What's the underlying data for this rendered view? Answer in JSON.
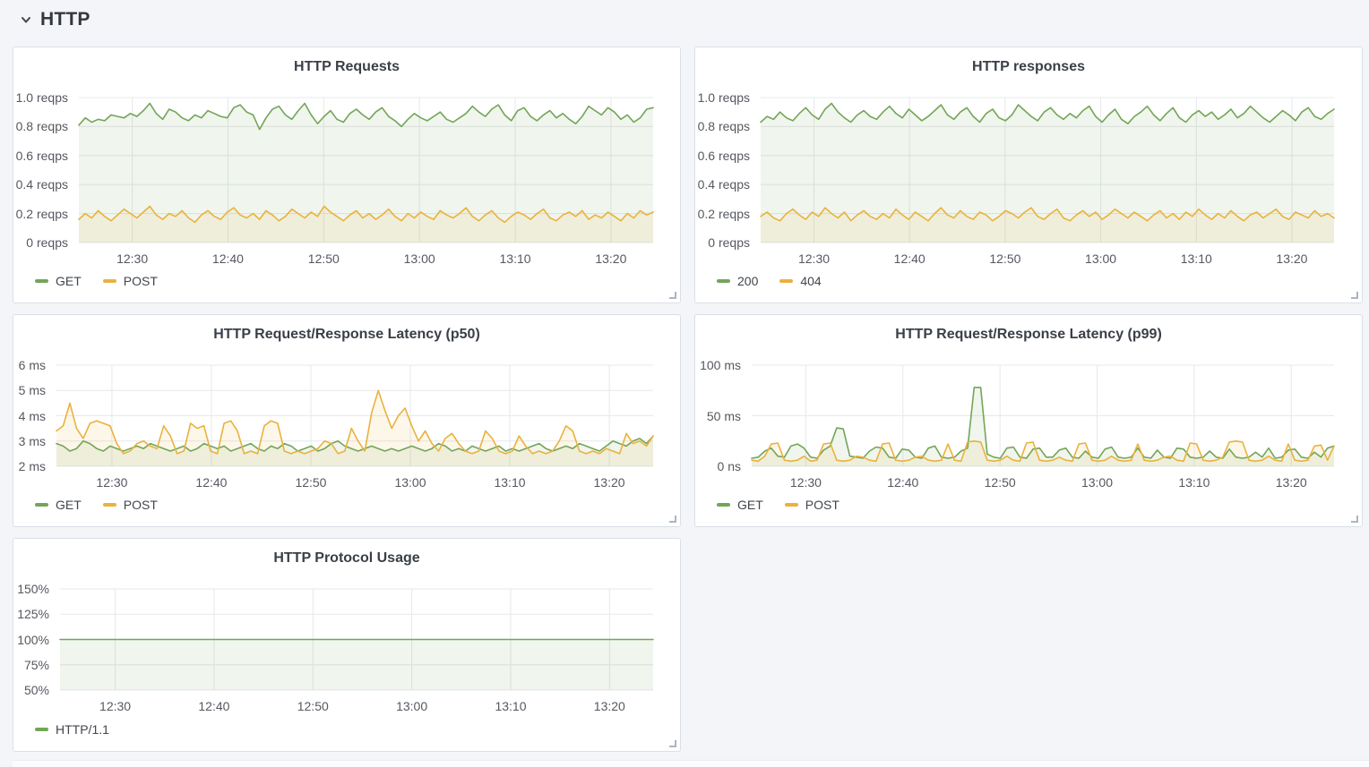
{
  "section": {
    "title": "HTTP"
  },
  "colors": {
    "series_green": "#73a557",
    "series_yellow": "#e9b23d",
    "grid": "#e7e8eb",
    "panel_border": "#dadfe8",
    "page_background": "#f4f5f9",
    "panel_background": "#ffffff",
    "tick_text": "#55585f",
    "title_text": "#3a3f47"
  },
  "chart_data": [
    {
      "type": "line",
      "title": "HTTP Requests",
      "y_unit": "reqps",
      "ylim": [
        0,
        1.0
      ],
      "yticks": {
        "labels": [
          "1.0 reqps",
          "0.8 reqps",
          "0.6 reqps",
          "0.4 reqps",
          "0.2 reqps",
          "0 reqps"
        ],
        "values": [
          1.0,
          0.8,
          0.6,
          0.4,
          0.2,
          0
        ]
      },
      "xticks": [
        "12:30",
        "12:40",
        "12:50",
        "13:00",
        "13:10",
        "13:20"
      ],
      "x_range": [
        "12:24",
        "13:24"
      ],
      "grid": true,
      "legend_position": "bottom-left",
      "series": [
        {
          "name": "GET",
          "color": "#73a557",
          "values": [
            0.81,
            0.86,
            0.83,
            0.85,
            0.84,
            0.88,
            0.87,
            0.86,
            0.89,
            0.87,
            0.91,
            0.96,
            0.89,
            0.85,
            0.92,
            0.9,
            0.86,
            0.84,
            0.88,
            0.86,
            0.91,
            0.89,
            0.87,
            0.86,
            0.93,
            0.95,
            0.9,
            0.88,
            0.78,
            0.86,
            0.92,
            0.94,
            0.88,
            0.85,
            0.91,
            0.96,
            0.88,
            0.82,
            0.87,
            0.91,
            0.85,
            0.83,
            0.89,
            0.92,
            0.88,
            0.85,
            0.9,
            0.93,
            0.87,
            0.84,
            0.8,
            0.85,
            0.89,
            0.86,
            0.84,
            0.87,
            0.9,
            0.85,
            0.83,
            0.86,
            0.89,
            0.94,
            0.9,
            0.87,
            0.92,
            0.95,
            0.88,
            0.84,
            0.91,
            0.93,
            0.87,
            0.84,
            0.88,
            0.91,
            0.86,
            0.89,
            0.85,
            0.82,
            0.87,
            0.94,
            0.91,
            0.88,
            0.93,
            0.9,
            0.85,
            0.88,
            0.83,
            0.86,
            0.92,
            0.93
          ]
        },
        {
          "name": "POST",
          "color": "#e9b23d",
          "values": [
            0.16,
            0.2,
            0.17,
            0.22,
            0.18,
            0.15,
            0.19,
            0.23,
            0.2,
            0.17,
            0.21,
            0.25,
            0.19,
            0.16,
            0.2,
            0.18,
            0.22,
            0.17,
            0.14,
            0.19,
            0.22,
            0.18,
            0.16,
            0.21,
            0.24,
            0.19,
            0.17,
            0.2,
            0.16,
            0.22,
            0.19,
            0.15,
            0.18,
            0.23,
            0.2,
            0.17,
            0.21,
            0.18,
            0.25,
            0.21,
            0.18,
            0.15,
            0.19,
            0.22,
            0.17,
            0.2,
            0.16,
            0.19,
            0.23,
            0.18,
            0.15,
            0.2,
            0.17,
            0.21,
            0.18,
            0.16,
            0.22,
            0.19,
            0.17,
            0.2,
            0.24,
            0.18,
            0.15,
            0.19,
            0.22,
            0.17,
            0.14,
            0.18,
            0.21,
            0.19,
            0.16,
            0.2,
            0.23,
            0.17,
            0.15,
            0.19,
            0.21,
            0.18,
            0.22,
            0.16,
            0.19,
            0.17,
            0.21,
            0.18,
            0.15,
            0.2,
            0.17,
            0.22,
            0.19,
            0.21
          ]
        }
      ]
    },
    {
      "type": "line",
      "title": "HTTP responses",
      "y_unit": "reqps",
      "ylim": [
        0,
        1.0
      ],
      "yticks": {
        "labels": [
          "1.0 reqps",
          "0.8 reqps",
          "0.6 reqps",
          "0.4 reqps",
          "0.2 reqps",
          "0 reqps"
        ],
        "values": [
          1.0,
          0.8,
          0.6,
          0.4,
          0.2,
          0
        ]
      },
      "xticks": [
        "12:30",
        "12:40",
        "12:50",
        "13:00",
        "13:10",
        "13:20"
      ],
      "x_range": [
        "12:24",
        "13:24"
      ],
      "grid": true,
      "legend_position": "bottom-left",
      "series": [
        {
          "name": "200",
          "color": "#73a557",
          "values": [
            0.83,
            0.87,
            0.85,
            0.9,
            0.86,
            0.84,
            0.89,
            0.93,
            0.88,
            0.85,
            0.92,
            0.96,
            0.9,
            0.86,
            0.83,
            0.88,
            0.91,
            0.87,
            0.85,
            0.9,
            0.94,
            0.89,
            0.86,
            0.92,
            0.88,
            0.84,
            0.87,
            0.91,
            0.95,
            0.88,
            0.85,
            0.9,
            0.93,
            0.87,
            0.83,
            0.89,
            0.92,
            0.86,
            0.84,
            0.88,
            0.95,
            0.91,
            0.87,
            0.84,
            0.9,
            0.93,
            0.88,
            0.85,
            0.89,
            0.86,
            0.91,
            0.94,
            0.87,
            0.83,
            0.88,
            0.92,
            0.85,
            0.82,
            0.87,
            0.9,
            0.94,
            0.88,
            0.84,
            0.89,
            0.93,
            0.86,
            0.83,
            0.88,
            0.91,
            0.87,
            0.9,
            0.85,
            0.88,
            0.92,
            0.86,
            0.89,
            0.94,
            0.9,
            0.86,
            0.83,
            0.87,
            0.91,
            0.88,
            0.84,
            0.9,
            0.93,
            0.87,
            0.85,
            0.89,
            0.92
          ]
        },
        {
          "name": "404",
          "color": "#e9b23d",
          "values": [
            0.18,
            0.21,
            0.17,
            0.15,
            0.2,
            0.23,
            0.19,
            0.16,
            0.21,
            0.18,
            0.24,
            0.2,
            0.17,
            0.21,
            0.15,
            0.19,
            0.22,
            0.18,
            0.16,
            0.2,
            0.17,
            0.23,
            0.19,
            0.16,
            0.21,
            0.18,
            0.15,
            0.2,
            0.24,
            0.19,
            0.17,
            0.22,
            0.18,
            0.16,
            0.21,
            0.19,
            0.15,
            0.18,
            0.22,
            0.2,
            0.17,
            0.21,
            0.24,
            0.18,
            0.16,
            0.2,
            0.23,
            0.17,
            0.15,
            0.19,
            0.22,
            0.18,
            0.21,
            0.16,
            0.19,
            0.23,
            0.2,
            0.17,
            0.21,
            0.18,
            0.15,
            0.19,
            0.22,
            0.17,
            0.2,
            0.16,
            0.21,
            0.18,
            0.23,
            0.19,
            0.16,
            0.2,
            0.17,
            0.22,
            0.18,
            0.15,
            0.19,
            0.21,
            0.17,
            0.2,
            0.23,
            0.18,
            0.16,
            0.21,
            0.19,
            0.17,
            0.22,
            0.18,
            0.2,
            0.17
          ]
        }
      ]
    },
    {
      "type": "line",
      "title": "HTTP Request/Response Latency (p50)",
      "y_unit": "ms",
      "ylim": [
        2,
        6
      ],
      "yticks": {
        "labels": [
          "6 ms",
          "5 ms",
          "4 ms",
          "3 ms",
          "2 ms"
        ],
        "values": [
          6,
          5,
          4,
          3,
          2
        ]
      },
      "xticks": [
        "12:30",
        "12:40",
        "12:50",
        "13:00",
        "13:10",
        "13:20"
      ],
      "x_range": [
        "12:24",
        "13:24"
      ],
      "grid": true,
      "legend_position": "bottom-left",
      "series": [
        {
          "name": "GET",
          "color": "#73a557",
          "values": [
            2.9,
            2.8,
            2.6,
            2.7,
            3.0,
            2.9,
            2.7,
            2.6,
            2.8,
            2.7,
            2.6,
            2.7,
            2.8,
            2.7,
            2.9,
            2.8,
            2.7,
            2.6,
            2.7,
            2.8,
            2.6,
            2.7,
            2.9,
            2.8,
            2.7,
            2.8,
            2.6,
            2.7,
            2.8,
            2.9,
            2.7,
            2.6,
            2.8,
            2.7,
            2.9,
            2.8,
            2.6,
            2.7,
            2.8,
            2.6,
            2.7,
            2.9,
            3.0,
            2.8,
            2.7,
            2.6,
            2.7,
            2.8,
            2.7,
            2.6,
            2.7,
            2.6,
            2.7,
            2.8,
            2.7,
            2.6,
            2.7,
            2.9,
            2.8,
            2.6,
            2.7,
            2.6,
            2.8,
            2.7,
            2.6,
            2.7,
            2.8,
            2.6,
            2.7,
            2.6,
            2.7,
            2.8,
            2.9,
            2.7,
            2.6,
            2.7,
            2.8,
            2.7,
            2.9,
            2.8,
            2.7,
            2.6,
            2.8,
            3.0,
            2.9,
            2.8,
            3.0,
            3.1,
            2.9,
            3.2
          ]
        },
        {
          "name": "POST",
          "color": "#e9b23d",
          "values": [
            3.4,
            3.6,
            4.5,
            3.5,
            3.1,
            3.7,
            3.8,
            3.7,
            3.6,
            2.9,
            2.5,
            2.6,
            2.9,
            3.0,
            2.8,
            2.7,
            3.6,
            3.2,
            2.5,
            2.6,
            3.7,
            3.5,
            3.6,
            2.6,
            2.5,
            3.7,
            3.8,
            3.4,
            2.5,
            2.6,
            2.5,
            3.6,
            3.8,
            3.7,
            2.6,
            2.5,
            2.6,
            2.5,
            2.6,
            2.7,
            3.0,
            2.9,
            2.5,
            2.6,
            3.5,
            3.0,
            2.6,
            4.1,
            5.0,
            4.2,
            3.5,
            4.0,
            4.3,
            3.6,
            3.0,
            3.4,
            2.9,
            2.6,
            3.1,
            3.3,
            2.9,
            2.6,
            2.5,
            2.6,
            3.4,
            3.1,
            2.6,
            2.5,
            2.6,
            3.2,
            2.8,
            2.5,
            2.6,
            2.5,
            2.6,
            3.0,
            3.6,
            3.4,
            2.6,
            2.5,
            2.6,
            2.5,
            2.7,
            2.6,
            2.5,
            3.3,
            2.9,
            3.0,
            2.8,
            3.2
          ]
        }
      ]
    },
    {
      "type": "line",
      "title": "HTTP Request/Response Latency (p99)",
      "y_unit": "ms",
      "ylim": [
        0,
        100
      ],
      "yticks": {
        "labels": [
          "100 ms",
          "50 ms",
          "0 ns"
        ],
        "values": [
          100,
          50,
          0
        ]
      },
      "xticks": [
        "12:30",
        "12:40",
        "12:50",
        "13:00",
        "13:10",
        "13:20"
      ],
      "x_range": [
        "12:24",
        "13:24"
      ],
      "grid": true,
      "legend_position": "bottom-left",
      "series": [
        {
          "name": "GET",
          "color": "#73a557",
          "values": [
            8,
            9,
            15,
            18,
            10,
            9,
            20,
            22,
            18,
            9,
            8,
            16,
            20,
            38,
            37,
            10,
            9,
            8,
            15,
            19,
            18,
            9,
            8,
            17,
            16,
            9,
            8,
            18,
            20,
            9,
            8,
            9,
            15,
            18,
            78,
            78,
            12,
            9,
            8,
            18,
            19,
            9,
            8,
            17,
            18,
            9,
            9,
            16,
            18,
            9,
            8,
            15,
            9,
            8,
            17,
            19,
            9,
            8,
            9,
            18,
            9,
            8,
            16,
            9,
            8,
            18,
            17,
            9,
            8,
            9,
            15,
            9,
            8,
            17,
            9,
            8,
            9,
            14,
            9,
            18,
            8,
            9,
            16,
            17,
            9,
            8,
            14,
            9,
            18,
            20
          ]
        },
        {
          "name": "POST",
          "color": "#e9b23d",
          "values": [
            6,
            5,
            10,
            22,
            23,
            6,
            5,
            6,
            10,
            5,
            6,
            22,
            23,
            6,
            5,
            6,
            10,
            9,
            6,
            5,
            22,
            23,
            6,
            5,
            6,
            9,
            10,
            6,
            5,
            6,
            22,
            6,
            5,
            24,
            25,
            24,
            6,
            5,
            6,
            10,
            6,
            5,
            23,
            24,
            6,
            5,
            6,
            9,
            6,
            5,
            22,
            23,
            6,
            5,
            6,
            10,
            6,
            5,
            6,
            22,
            6,
            5,
            6,
            9,
            10,
            6,
            5,
            23,
            22,
            6,
            5,
            6,
            9,
            24,
            25,
            24,
            6,
            5,
            6,
            10,
            6,
            5,
            22,
            6,
            5,
            6,
            20,
            21,
            6,
            20
          ]
        }
      ]
    },
    {
      "type": "line",
      "title": "HTTP Protocol Usage",
      "y_unit": "%",
      "ylim": [
        50,
        150
      ],
      "yticks": {
        "labels": [
          "150%",
          "125%",
          "100%",
          "75%",
          "50%"
        ],
        "values": [
          150,
          125,
          100,
          75,
          50
        ]
      },
      "xticks": [
        "12:30",
        "12:40",
        "12:50",
        "13:00",
        "13:10",
        "13:20"
      ],
      "x_range": [
        "12:24",
        "13:24"
      ],
      "grid": true,
      "legend_position": "bottom-left",
      "series": [
        {
          "name": "HTTP/1.1",
          "color": "#73a557",
          "values": [
            100,
            100,
            100,
            100,
            100,
            100,
            100,
            100,
            100,
            100
          ]
        }
      ]
    }
  ]
}
